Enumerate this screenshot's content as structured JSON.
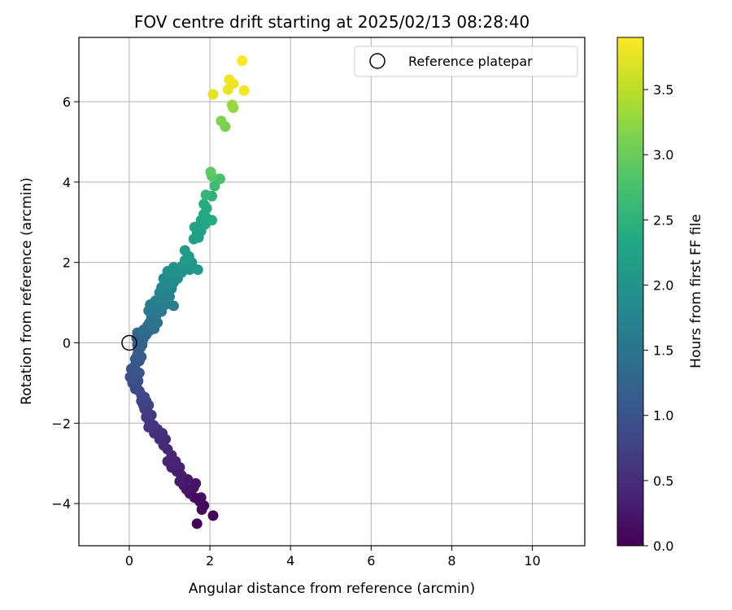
{
  "chart_data": {
    "type": "scatter",
    "title": "FOV centre drift starting at 2025/02/13 08:28:40",
    "xlabel": "Angular distance from reference (arcmin)",
    "ylabel": "Rotation from reference (arcmin)",
    "xlim": [
      -1.25,
      11.3
    ],
    "ylim": [
      -5.05,
      7.6
    ],
    "xticks": [
      0,
      2,
      4,
      6,
      8,
      10
    ],
    "yticks": [
      -4,
      -2,
      0,
      2,
      4,
      6
    ],
    "xtick_labels": [
      "0",
      "2",
      "4",
      "6",
      "8",
      "10"
    ],
    "ytick_labels": [
      "−4",
      "−2",
      "0",
      "2",
      "4",
      "6"
    ],
    "grid": true,
    "legend": {
      "placement": "top-right",
      "entries": [
        "Reference platepar"
      ]
    },
    "colorbar": {
      "label": "Hours from first FF file",
      "colormap": "viridis",
      "range": [
        0,
        3.9
      ],
      "ticks": [
        0.0,
        0.5,
        1.0,
        1.5,
        2.0,
        2.5,
        3.0,
        3.5
      ],
      "tick_labels": [
        "0.0",
        "0.5",
        "1.0",
        "1.5",
        "2.0",
        "2.5",
        "3.0",
        "3.5"
      ]
    },
    "reference_point": {
      "x": 0,
      "y": 0
    },
    "series": [
      {
        "points": [
          {
            "x": 1.68,
            "y": -4.5,
            "t": 0.02
          },
          {
            "x": 2.08,
            "y": -4.3,
            "t": 0.04
          },
          {
            "x": 1.8,
            "y": -4.15,
            "t": 0.06
          },
          {
            "x": 1.85,
            "y": -4.05,
            "t": 0.08
          },
          {
            "x": 1.75,
            "y": -3.95,
            "t": 0.1
          },
          {
            "x": 1.62,
            "y": -3.85,
            "t": 0.12
          },
          {
            "x": 1.78,
            "y": -3.85,
            "t": 0.14
          },
          {
            "x": 1.5,
            "y": -3.75,
            "t": 0.16
          },
          {
            "x": 1.6,
            "y": -3.6,
            "t": 0.18
          },
          {
            "x": 1.42,
            "y": -3.65,
            "t": 0.2
          },
          {
            "x": 1.65,
            "y": -3.5,
            "t": 0.22
          },
          {
            "x": 1.35,
            "y": -3.55,
            "t": 0.24
          },
          {
            "x": 1.45,
            "y": -3.4,
            "t": 0.26
          },
          {
            "x": 1.25,
            "y": -3.45,
            "t": 0.28
          },
          {
            "x": 1.3,
            "y": -3.3,
            "t": 0.3
          },
          {
            "x": 1.18,
            "y": -3.2,
            "t": 0.32
          },
          {
            "x": 1.25,
            "y": -3.1,
            "t": 0.34
          },
          {
            "x": 1.05,
            "y": -3.1,
            "t": 0.36
          },
          {
            "x": 1.15,
            "y": -2.95,
            "t": 0.38
          },
          {
            "x": 0.95,
            "y": -2.95,
            "t": 0.4
          },
          {
            "x": 1.05,
            "y": -2.8,
            "t": 0.42
          },
          {
            "x": 0.95,
            "y": -2.65,
            "t": 0.44
          },
          {
            "x": 0.85,
            "y": -2.55,
            "t": 0.46
          },
          {
            "x": 0.9,
            "y": -2.4,
            "t": 0.48
          },
          {
            "x": 0.75,
            "y": -2.4,
            "t": 0.5
          },
          {
            "x": 0.82,
            "y": -2.25,
            "t": 0.52
          },
          {
            "x": 0.7,
            "y": -2.15,
            "t": 0.54
          },
          {
            "x": 0.62,
            "y": -2.25,
            "t": 0.56
          },
          {
            "x": 0.6,
            "y": -2.05,
            "t": 0.58
          },
          {
            "x": 0.48,
            "y": -2.1,
            "t": 0.6
          },
          {
            "x": 0.5,
            "y": -1.95,
            "t": 0.62
          },
          {
            "x": 0.55,
            "y": -1.8,
            "t": 0.64
          },
          {
            "x": 0.42,
            "y": -1.85,
            "t": 0.66
          },
          {
            "x": 0.45,
            "y": -1.7,
            "t": 0.68
          },
          {
            "x": 0.38,
            "y": -1.65,
            "t": 0.7
          },
          {
            "x": 0.48,
            "y": -1.55,
            "t": 0.72
          },
          {
            "x": 0.35,
            "y": -1.55,
            "t": 0.74
          },
          {
            "x": 0.42,
            "y": -1.45,
            "t": 0.76
          },
          {
            "x": 0.3,
            "y": -1.45,
            "t": 0.78
          },
          {
            "x": 0.38,
            "y": -1.35,
            "t": 0.8
          },
          {
            "x": 0.3,
            "y": -1.3,
            "t": 0.82
          },
          {
            "x": 0.25,
            "y": -1.2,
            "t": 0.84
          },
          {
            "x": 0.15,
            "y": -1.15,
            "t": 0.86
          },
          {
            "x": 0.18,
            "y": -1.05,
            "t": 0.88
          },
          {
            "x": 0.08,
            "y": -1.0,
            "t": 0.9
          },
          {
            "x": 0.12,
            "y": -0.9,
            "t": 0.92
          },
          {
            "x": 0.02,
            "y": -0.85,
            "t": 0.94
          },
          {
            "x": 0.22,
            "y": -0.95,
            "t": 0.96
          },
          {
            "x": 0.1,
            "y": -0.75,
            "t": 0.98
          },
          {
            "x": 0.05,
            "y": -0.65,
            "t": 1.0
          },
          {
            "x": 0.25,
            "y": -0.75,
            "t": 1.02
          },
          {
            "x": 0.15,
            "y": -0.55,
            "t": 1.04
          },
          {
            "x": 0.25,
            "y": -0.45,
            "t": 1.06
          },
          {
            "x": 0.15,
            "y": -0.4,
            "t": 1.08
          },
          {
            "x": 0.2,
            "y": -0.3,
            "t": 1.1
          },
          {
            "x": 0.3,
            "y": -0.35,
            "t": 1.12
          },
          {
            "x": 0.22,
            "y": -0.2,
            "t": 1.14
          },
          {
            "x": 0.28,
            "y": -0.12,
            "t": 1.16
          },
          {
            "x": 0.2,
            "y": -0.05,
            "t": 1.18
          },
          {
            "x": 0.32,
            "y": -0.05,
            "t": 1.2
          },
          {
            "x": 0.25,
            "y": 0.05,
            "t": 1.22
          },
          {
            "x": 0.18,
            "y": 0.12,
            "t": 1.24
          },
          {
            "x": 0.35,
            "y": 0.1,
            "t": 1.26
          },
          {
            "x": 0.2,
            "y": 0.25,
            "t": 1.28
          },
          {
            "x": 0.3,
            "y": 0.22,
            "t": 1.3
          },
          {
            "x": 0.42,
            "y": 0.2,
            "t": 1.32
          },
          {
            "x": 0.35,
            "y": 0.32,
            "t": 1.34
          },
          {
            "x": 0.5,
            "y": 0.3,
            "t": 1.36
          },
          {
            "x": 0.45,
            "y": 0.42,
            "t": 1.38
          },
          {
            "x": 0.55,
            "y": 0.4,
            "t": 1.4
          },
          {
            "x": 0.62,
            "y": 0.35,
            "t": 1.42
          },
          {
            "x": 0.5,
            "y": 0.5,
            "t": 1.44
          },
          {
            "x": 0.6,
            "y": 0.55,
            "t": 1.46
          },
          {
            "x": 0.7,
            "y": 0.5,
            "t": 1.48
          },
          {
            "x": 0.55,
            "y": 0.65,
            "t": 1.5
          },
          {
            "x": 0.68,
            "y": 0.7,
            "t": 1.52
          },
          {
            "x": 0.48,
            "y": 0.8,
            "t": 1.54
          },
          {
            "x": 0.62,
            "y": 0.82,
            "t": 1.56
          },
          {
            "x": 0.8,
            "y": 0.78,
            "t": 1.58
          },
          {
            "x": 0.52,
            "y": 0.95,
            "t": 1.6
          },
          {
            "x": 0.72,
            "y": 0.95,
            "t": 1.62
          },
          {
            "x": 0.9,
            "y": 0.95,
            "t": 1.64
          },
          {
            "x": 1.1,
            "y": 0.92,
            "t": 1.66
          },
          {
            "x": 0.65,
            "y": 1.05,
            "t": 1.68
          },
          {
            "x": 0.85,
            "y": 1.1,
            "t": 1.7
          },
          {
            "x": 1.0,
            "y": 1.15,
            "t": 1.72
          },
          {
            "x": 0.75,
            "y": 1.25,
            "t": 1.74
          },
          {
            "x": 0.95,
            "y": 1.25,
            "t": 1.76
          },
          {
            "x": 0.8,
            "y": 1.38,
            "t": 1.78
          },
          {
            "x": 1.05,
            "y": 1.35,
            "t": 1.8
          },
          {
            "x": 0.9,
            "y": 1.5,
            "t": 1.82
          },
          {
            "x": 1.1,
            "y": 1.5,
            "t": 1.84
          },
          {
            "x": 0.85,
            "y": 1.6,
            "t": 1.86
          },
          {
            "x": 1.0,
            "y": 1.65,
            "t": 1.88
          },
          {
            "x": 1.2,
            "y": 1.6,
            "t": 1.9
          },
          {
            "x": 0.95,
            "y": 1.78,
            "t": 1.92
          },
          {
            "x": 1.15,
            "y": 1.78,
            "t": 1.94
          },
          {
            "x": 1.3,
            "y": 1.75,
            "t": 1.96
          },
          {
            "x": 1.1,
            "y": 1.88,
            "t": 1.98
          },
          {
            "x": 1.3,
            "y": 1.9,
            "t": 2.0
          },
          {
            "x": 1.5,
            "y": 1.82,
            "t": 2.02
          },
          {
            "x": 1.42,
            "y": 1.92,
            "t": 2.04
          },
          {
            "x": 1.55,
            "y": 2.0,
            "t": 2.06
          },
          {
            "x": 1.48,
            "y": 2.15,
            "t": 2.08
          },
          {
            "x": 1.38,
            "y": 2.05,
            "t": 2.1
          },
          {
            "x": 1.7,
            "y": 1.82,
            "t": 2.12
          },
          {
            "x": 1.38,
            "y": 2.3,
            "t": 2.14
          },
          {
            "x": 1.6,
            "y": 2.58,
            "t": 2.16
          },
          {
            "x": 1.72,
            "y": 2.62,
            "t": 2.18
          },
          {
            "x": 1.68,
            "y": 2.72,
            "t": 2.2
          },
          {
            "x": 1.78,
            "y": 2.78,
            "t": 2.22
          },
          {
            "x": 1.75,
            "y": 2.9,
            "t": 2.24
          },
          {
            "x": 1.62,
            "y": 2.88,
            "t": 2.26
          },
          {
            "x": 1.88,
            "y": 2.95,
            "t": 2.28
          },
          {
            "x": 1.78,
            "y": 3.05,
            "t": 2.3
          },
          {
            "x": 1.92,
            "y": 3.1,
            "t": 2.32
          },
          {
            "x": 1.85,
            "y": 3.2,
            "t": 2.34
          },
          {
            "x": 2.05,
            "y": 3.05,
            "t": 2.36
          },
          {
            "x": 1.92,
            "y": 3.35,
            "t": 2.38
          },
          {
            "x": 1.85,
            "y": 3.45,
            "t": 2.4
          },
          {
            "x": 2.05,
            "y": 3.65,
            "t": 2.5
          },
          {
            "x": 1.9,
            "y": 3.68,
            "t": 2.55
          },
          {
            "x": 2.12,
            "y": 3.9,
            "t": 2.65
          },
          {
            "x": 2.25,
            "y": 4.08,
            "t": 2.75
          },
          {
            "x": 2.05,
            "y": 4.15,
            "t": 2.85
          },
          {
            "x": 2.02,
            "y": 4.25,
            "t": 2.92
          },
          {
            "x": 2.38,
            "y": 5.38,
            "t": 3.1
          },
          {
            "x": 2.28,
            "y": 5.52,
            "t": 3.15
          },
          {
            "x": 2.58,
            "y": 5.85,
            "t": 3.25
          },
          {
            "x": 2.55,
            "y": 5.92,
            "t": 3.3
          },
          {
            "x": 2.08,
            "y": 6.18,
            "t": 3.75
          },
          {
            "x": 2.45,
            "y": 6.3,
            "t": 3.78
          },
          {
            "x": 2.58,
            "y": 6.45,
            "t": 3.8
          },
          {
            "x": 2.48,
            "y": 6.55,
            "t": 3.82
          },
          {
            "x": 2.85,
            "y": 6.28,
            "t": 3.84
          },
          {
            "x": 2.8,
            "y": 7.02,
            "t": 3.88
          }
        ]
      }
    ]
  }
}
